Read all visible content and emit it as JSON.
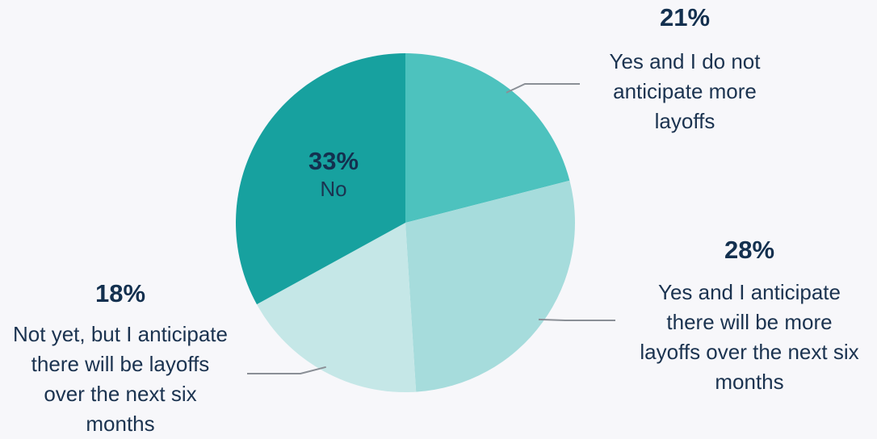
{
  "chart_data": {
    "type": "pie",
    "title": "",
    "slices": [
      {
        "value": 21,
        "value_label": "21%",
        "label": "Yes and I do not anticipate more layoffs",
        "color": "#4dc2be"
      },
      {
        "value": 28,
        "value_label": "28%",
        "label": "Yes and I anticipate there will be more layoffs over the next six months",
        "color": "#a6dcdc"
      },
      {
        "value": 18,
        "value_label": "18%",
        "label": "Not yet, but I anticipate there will be layoffs over the next six months",
        "color": "#c5e7e7"
      },
      {
        "value": 33,
        "value_label": "33%",
        "label": "No",
        "color": "#17a19f"
      }
    ],
    "start_angle_deg": 0,
    "direction": "clockwise",
    "leader_line_color": "#8a8f96",
    "legend": "none"
  }
}
